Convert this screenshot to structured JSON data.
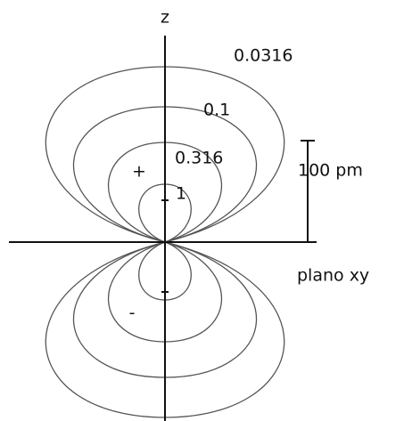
{
  "axis_label": "z",
  "contours": [
    {
      "label": "0.0316"
    },
    {
      "label": "0.1"
    },
    {
      "label": "0.316"
    },
    {
      "label": "1"
    }
  ],
  "signs": {
    "upper": "+",
    "lower": "-"
  },
  "scale_bar": {
    "label": "100 pm"
  },
  "plane_label": "plano xy"
}
